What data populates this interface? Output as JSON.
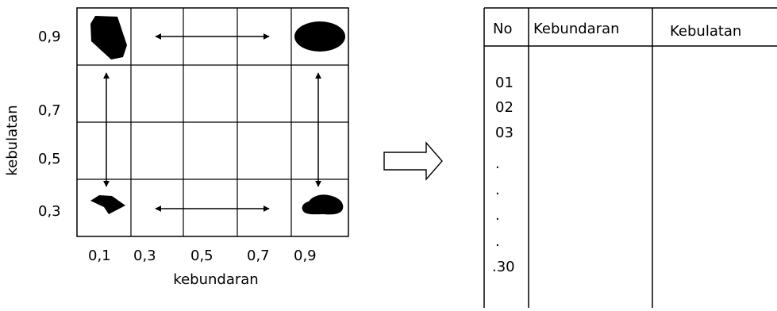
{
  "grid": {
    "y_ticks": [
      "0,9",
      "0,7",
      "0,5",
      "0,3"
    ],
    "x_ticks": [
      "0,1",
      "0,3",
      "0,5",
      "0,7",
      "0,9"
    ],
    "x_label": "kebundaran",
    "y_label": "kebulatan"
  },
  "table": {
    "headers": [
      "No",
      "Kebundaran",
      "Kebulatan"
    ],
    "rows": [
      "01",
      "02",
      "03",
      ".",
      ".",
      ".",
      ".",
      ".30"
    ]
  }
}
